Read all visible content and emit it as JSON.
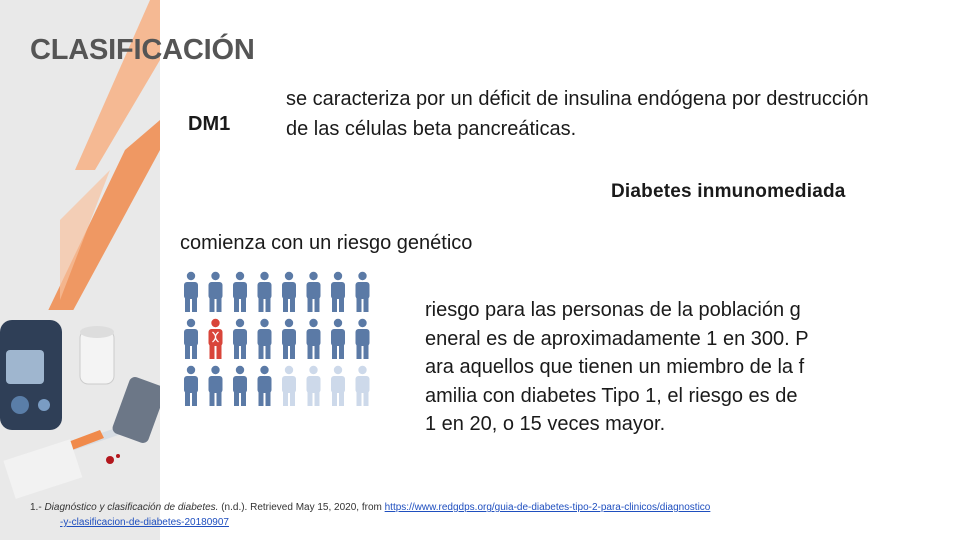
{
  "slide": {
    "title": "CLASIFICACIÓN",
    "term": "DM1",
    "definition": "se caracteriza por un déficit de insulina endógena por destrucción de las células beta pancreáticas.",
    "subtitle": "Diabetes inmunomediada",
    "genetic_note": "comienza con un riesgo genético",
    "risk_lines": [
      "riesgo para las personas de la población g",
      "eneral es de aproximadamente 1 en 300. P",
      "ara aquellos que tienen un miembro de la f",
      "amilia con diabetes Tipo 1, el riesgo es de",
      "1 en 20, o 15 veces mayor."
    ]
  },
  "people_grid": {
    "rows": 3,
    "cols": 8,
    "highlighted_index": 9,
    "faded_from_index": 20,
    "colors": {
      "person": "#5b7aa6",
      "highlight": "#d9453a",
      "faded": "#cdd9ea"
    }
  },
  "citation": {
    "prefix": "1.- ",
    "title_italic": "Diagnóstico y clasificación de diabetes.",
    "rest": " (n.d.). Retrieved May 15, 2020, from ",
    "link_line1": "https://www.redgdps.org/guia-de-diabetes-tipo-2-para-clinicos/diagnostico",
    "link_line2": "-y-clasificacion-de-diabetes-20180907"
  },
  "colors": {
    "accent": "#f08a4b",
    "title": "#555555",
    "panel": "#e9e9e9"
  }
}
